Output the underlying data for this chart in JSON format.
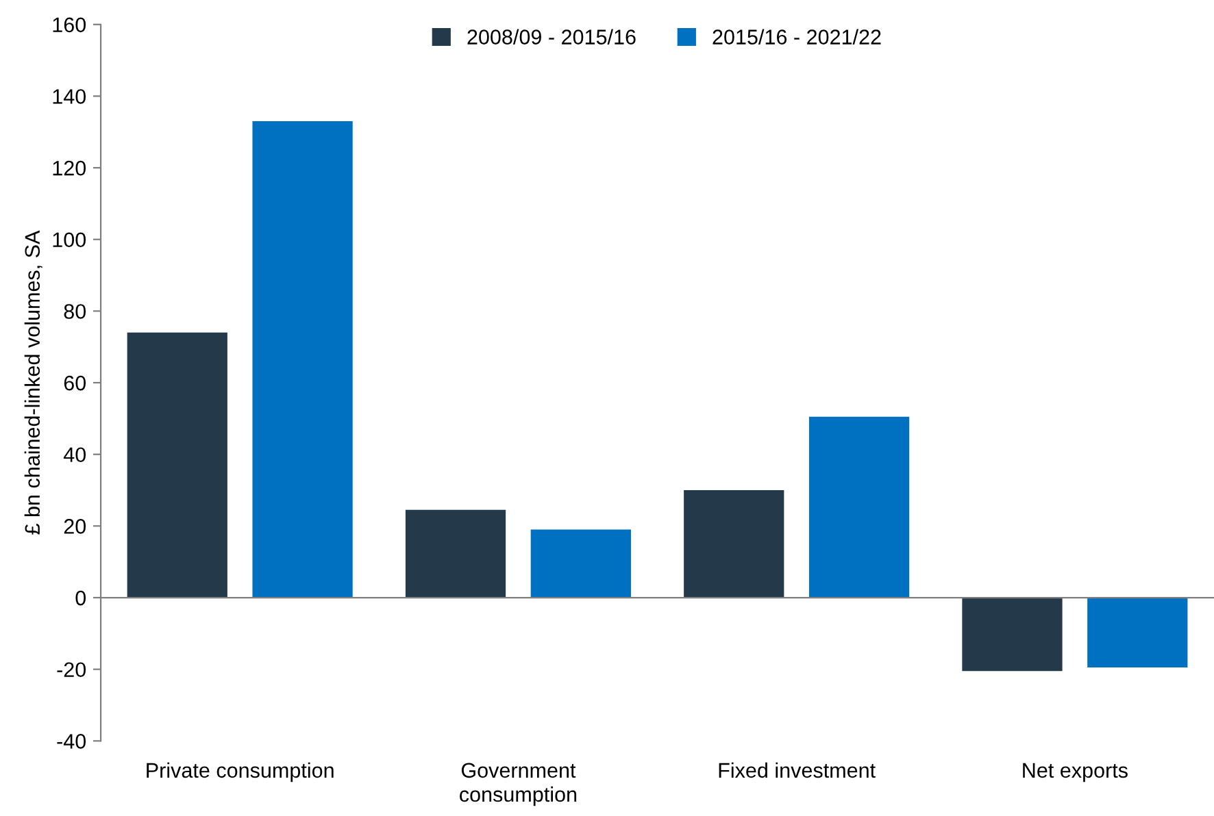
{
  "chart_data": {
    "type": "bar",
    "ylabel": "£ bn chained-linked volumes, SA",
    "categories": [
      "Private consumption",
      "Government\nconsumption",
      "Fixed investment",
      "Net exports"
    ],
    "series": [
      {
        "name": "2008/09 - 2015/16",
        "color": "#243a4a",
        "values": [
          74,
          24.5,
          30,
          -20.5
        ]
      },
      {
        "name": "2015/16 - 2021/22",
        "color": "#0070c0",
        "values": [
          133,
          19,
          50.5,
          -19.5
        ]
      }
    ],
    "ylim": [
      -40,
      160
    ],
    "yticks": [
      -40,
      -20,
      0,
      20,
      40,
      60,
      80,
      100,
      120,
      140,
      160
    ],
    "legend": "top"
  }
}
